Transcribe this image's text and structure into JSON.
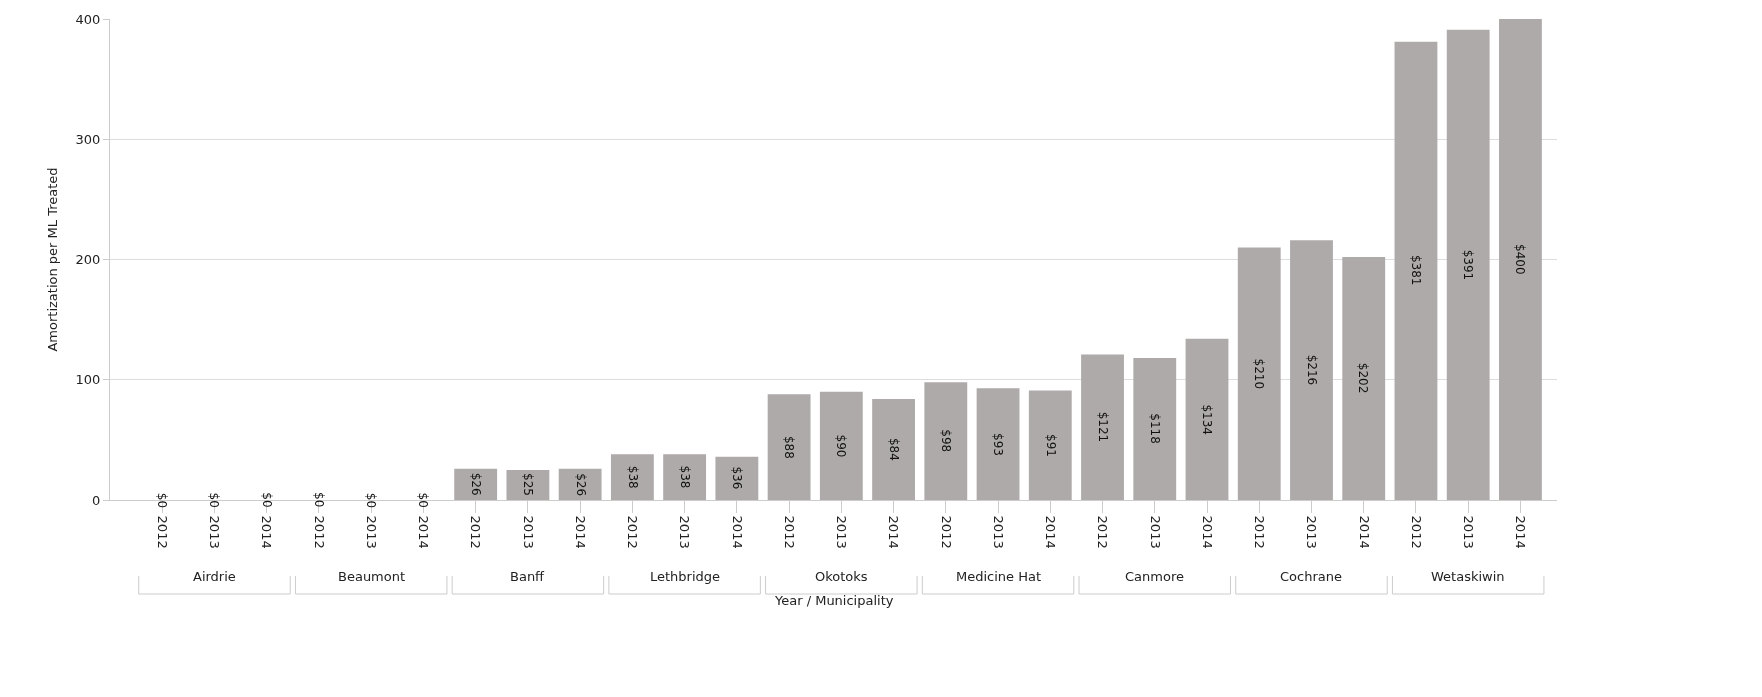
{
  "chart_data": {
    "type": "bar",
    "xlabel": "Year / Municipality",
    "ylabel": "Amortization per ML Treated",
    "categories": [
      "2012",
      "2013",
      "2014",
      "2012",
      "2013",
      "2014",
      "2012",
      "2013",
      "2014",
      "2012",
      "2013",
      "2014",
      "2012",
      "2013",
      "2014",
      "2012",
      "2013",
      "2014",
      "2012",
      "2013",
      "2014",
      "2012",
      "2013",
      "2014",
      "2012",
      "2013",
      "2014"
    ],
    "values": [
      0,
      0,
      0,
      0,
      0,
      0,
      26,
      25,
      26,
      38,
      38,
      36,
      88,
      90,
      84,
      98,
      93,
      91,
      121,
      118,
      134,
      210,
      216,
      202,
      381,
      391,
      400
    ],
    "value_labels": [
      "$0",
      "$0",
      "$0",
      "$0",
      "$0",
      "$0",
      "$26",
      "$25",
      "$26",
      "$38",
      "$38",
      "$36",
      "$88",
      "$90",
      "$84",
      "$98",
      "$93",
      "$91",
      "$121",
      "$118",
      "$134",
      "$210",
      "$216",
      "$202",
      "$381",
      "$391",
      "$400"
    ],
    "color": "#aeaaa9",
    "annotations": [
      "Airdrie",
      "Beaumont",
      "Banff",
      "Lethbridge",
      "Okotoks",
      "Medicine Hat",
      "Canmore",
      "Cochrane",
      "Wetaskiwin"
    ],
    "ylim": [
      0,
      400
    ],
    "yticks": [
      0,
      100,
      200,
      300,
      400
    ],
    "grid": "y",
    "legend": false
  }
}
